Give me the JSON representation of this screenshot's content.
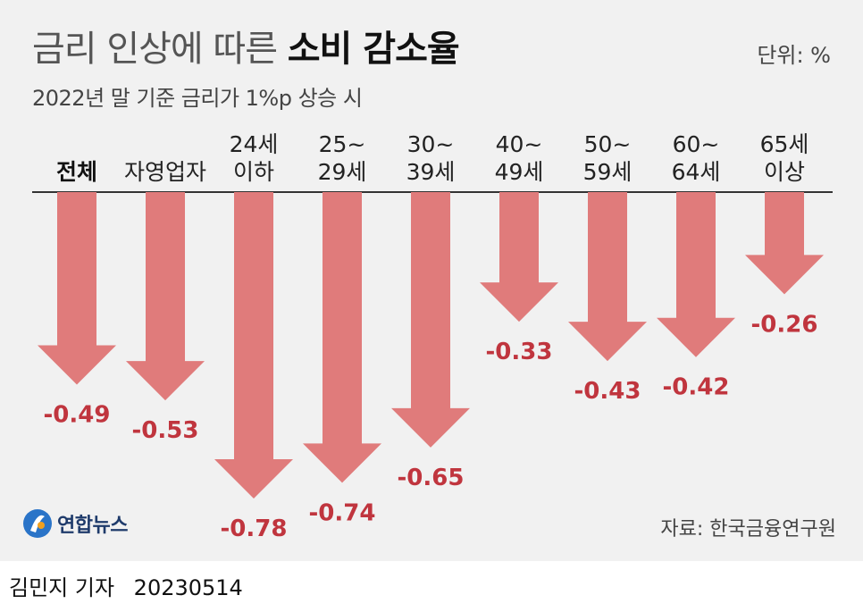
{
  "header": {
    "title_light": "금리 인상에 따른",
    "title_bold": "소비 감소율",
    "unit": "단위: %",
    "subtitle": "2022년 말 기준 금리가 1%p 상승 시"
  },
  "footer": {
    "logo_text": "연합뉴스",
    "source": "자료: 한국금융연구원",
    "reporter": "김민지 기자",
    "date": "20230514"
  },
  "colors": {
    "arrow": "#e07b7b",
    "value_text": "#c0353e",
    "baseline": "#333333"
  },
  "chart_data": {
    "type": "bar",
    "categories": [
      [
        "전체"
      ],
      [
        "자영업자"
      ],
      [
        "24세",
        "이하"
      ],
      [
        "25~",
        "29세"
      ],
      [
        "30~",
        "39세"
      ],
      [
        "40~",
        "49세"
      ],
      [
        "50~",
        "59세"
      ],
      [
        "60~",
        "64세"
      ],
      [
        "65세",
        "이상"
      ]
    ],
    "values": [
      -0.49,
      -0.53,
      -0.78,
      -0.74,
      -0.65,
      -0.33,
      -0.43,
      -0.42,
      -0.26
    ],
    "value_labels": [
      "-0.49",
      "-0.53",
      "-0.78",
      "-0.74",
      "-0.65",
      "-0.33",
      "-0.43",
      "-0.42",
      "-0.26"
    ],
    "ylim": [
      -0.78,
      0
    ],
    "grid": false,
    "emphasized_category": 0
  }
}
